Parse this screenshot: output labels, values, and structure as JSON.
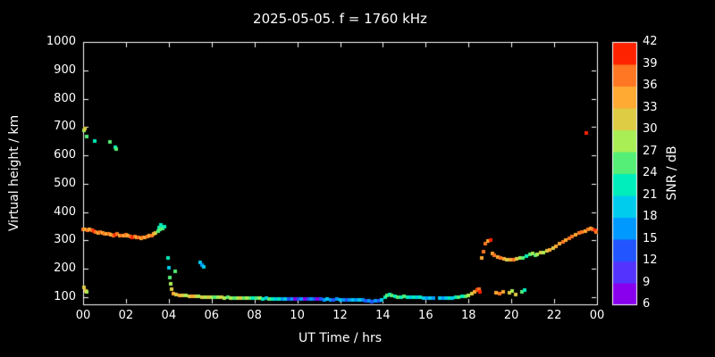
{
  "chart_data": {
    "type": "scatter",
    "title": "2025-05-05. f = 1760 kHz",
    "xlabel": "UT Time / hrs",
    "ylabel": "Virtual height / km",
    "xlim": [
      0,
      24
    ],
    "ylim": [
      75,
      1000
    ],
    "background": "#000000",
    "frame_color": "#ffffff",
    "text_color": "#ffffff",
    "grid": false,
    "x_ticks": {
      "values": [
        0,
        2,
        4,
        6,
        8,
        10,
        12,
        14,
        16,
        18,
        20,
        22,
        24
      ],
      "labels": [
        "00",
        "02",
        "04",
        "06",
        "08",
        "10",
        "12",
        "14",
        "16",
        "18",
        "20",
        "22",
        "00"
      ]
    },
    "y_ticks": {
      "values": [
        100,
        200,
        300,
        400,
        500,
        600,
        700,
        800,
        900,
        1000
      ],
      "labels": [
        "100",
        "200",
        "300",
        "400",
        "500",
        "600",
        "700",
        "800",
        "900",
        "1000"
      ]
    },
    "colorbar": {
      "label": "SNR / dB",
      "min": 6,
      "max": 42,
      "tick_values": [
        6,
        9,
        12,
        15,
        18,
        21,
        24,
        27,
        30,
        33,
        36,
        39,
        42
      ],
      "band_colors": [
        "#8800ee",
        "#5533ff",
        "#2255ff",
        "#0099ff",
        "#00ccee",
        "#00eebb",
        "#55ee77",
        "#aaee55",
        "#ddcc44",
        "#ffaa33",
        "#ff7722",
        "#ff2200"
      ]
    },
    "point_columns": [
      "ut_hours",
      "virtual_height_km",
      "snr_db"
    ],
    "points": [
      [
        0.0,
        340,
        36
      ],
      [
        0.1,
        338,
        33
      ],
      [
        0.2,
        336,
        36
      ],
      [
        0.3,
        338,
        33
      ],
      [
        0.4,
        336,
        36
      ],
      [
        0.5,
        334,
        39
      ],
      [
        0.6,
        331,
        36
      ],
      [
        0.7,
        328,
        33
      ],
      [
        0.8,
        330,
        36
      ],
      [
        0.9,
        326,
        33
      ],
      [
        1.0,
        324,
        36
      ],
      [
        1.1,
        322,
        33
      ],
      [
        1.2,
        324,
        36
      ],
      [
        1.3,
        320,
        33
      ],
      [
        1.4,
        318,
        36
      ],
      [
        1.5,
        320,
        39
      ],
      [
        1.6,
        322,
        36
      ],
      [
        1.7,
        318,
        33
      ],
      [
        1.8,
        316,
        36
      ],
      [
        1.9,
        318,
        33
      ],
      [
        2.0,
        320,
        36
      ],
      [
        2.1,
        316,
        33
      ],
      [
        2.2,
        314,
        36
      ],
      [
        2.3,
        312,
        39
      ],
      [
        2.4,
        314,
        36
      ],
      [
        2.5,
        310,
        33
      ],
      [
        2.6,
        312,
        36
      ],
      [
        2.7,
        308,
        33
      ],
      [
        2.8,
        310,
        36
      ],
      [
        2.9,
        312,
        33
      ],
      [
        3.0,
        314,
        36
      ],
      [
        3.1,
        316,
        33
      ],
      [
        3.2,
        318,
        36
      ],
      [
        3.3,
        322,
        33
      ],
      [
        3.4,
        326,
        30
      ],
      [
        3.5,
        332,
        24
      ],
      [
        3.55,
        345,
        21
      ],
      [
        3.6,
        338,
        24
      ],
      [
        3.65,
        355,
        21
      ],
      [
        3.7,
        344,
        24
      ],
      [
        3.8,
        350,
        21
      ],
      [
        0.05,
        690,
        27
      ],
      [
        0.1,
        695,
        30
      ],
      [
        0.15,
        665,
        24
      ],
      [
        0.55,
        650,
        21
      ],
      [
        1.25,
        648,
        24
      ],
      [
        1.5,
        628,
        21
      ],
      [
        1.55,
        622,
        24
      ],
      [
        0.05,
        135,
        30
      ],
      [
        0.12,
        122,
        33
      ],
      [
        0.18,
        118,
        27
      ],
      [
        3.95,
        238,
        21
      ],
      [
        4.0,
        205,
        18
      ],
      [
        4.05,
        168,
        24
      ],
      [
        4.1,
        148,
        27
      ],
      [
        4.15,
        128,
        30
      ],
      [
        4.3,
        192,
        24
      ],
      [
        5.45,
        222,
        18
      ],
      [
        5.55,
        215,
        15
      ],
      [
        5.65,
        208,
        18
      ],
      [
        4.2,
        112,
        33
      ],
      [
        4.35,
        110,
        30
      ],
      [
        4.5,
        108,
        33
      ],
      [
        4.65,
        106,
        30
      ],
      [
        4.8,
        105,
        27
      ],
      [
        4.95,
        104,
        30
      ],
      [
        5.1,
        103,
        33
      ],
      [
        5.25,
        102,
        30
      ],
      [
        5.4,
        102,
        27
      ],
      [
        5.55,
        101,
        30
      ],
      [
        5.7,
        101,
        27
      ],
      [
        5.85,
        100,
        30
      ],
      [
        6.0,
        100,
        27
      ],
      [
        6.15,
        99,
        24
      ],
      [
        6.3,
        100,
        27
      ],
      [
        6.45,
        99,
        30
      ],
      [
        6.6,
        98,
        27
      ],
      [
        6.75,
        99,
        24
      ],
      [
        6.9,
        98,
        27
      ],
      [
        7.05,
        98,
        24
      ],
      [
        7.2,
        97,
        27
      ],
      [
        7.35,
        98,
        30
      ],
      [
        7.5,
        97,
        24
      ],
      [
        7.65,
        97,
        27
      ],
      [
        7.8,
        96,
        24
      ],
      [
        7.95,
        97,
        21
      ],
      [
        8.1,
        96,
        24
      ],
      [
        8.25,
        96,
        27
      ],
      [
        8.4,
        95,
        21
      ],
      [
        8.55,
        96,
        18
      ],
      [
        8.7,
        95,
        24
      ],
      [
        8.85,
        95,
        21
      ],
      [
        9.0,
        95,
        18
      ],
      [
        9.15,
        94,
        21
      ],
      [
        9.3,
        95,
        15
      ],
      [
        9.45,
        94,
        18
      ],
      [
        9.6,
        94,
        12
      ],
      [
        9.75,
        95,
        15
      ],
      [
        9.9,
        94,
        8
      ],
      [
        10.05,
        94,
        12
      ],
      [
        10.2,
        93,
        15
      ],
      [
        10.35,
        94,
        7
      ],
      [
        10.5,
        93,
        12
      ],
      [
        10.65,
        93,
        15
      ],
      [
        10.8,
        94,
        12
      ],
      [
        10.95,
        93,
        7
      ],
      [
        11.1,
        93,
        12
      ],
      [
        11.25,
        92,
        15
      ],
      [
        11.4,
        93,
        18
      ],
      [
        11.55,
        92,
        15
      ],
      [
        11.7,
        92,
        12
      ],
      [
        11.85,
        93,
        15
      ],
      [
        12.0,
        92,
        18
      ],
      [
        12.15,
        92,
        15
      ],
      [
        12.3,
        91,
        12
      ],
      [
        12.45,
        92,
        15
      ],
      [
        12.6,
        91,
        18
      ],
      [
        12.75,
        91,
        15
      ],
      [
        12.9,
        90,
        18
      ],
      [
        13.05,
        90,
        15
      ],
      [
        13.2,
        89,
        12
      ],
      [
        13.35,
        88,
        15
      ],
      [
        13.5,
        86,
        12
      ],
      [
        13.65,
        87,
        15
      ],
      [
        13.8,
        88,
        12
      ],
      [
        13.95,
        90,
        18
      ],
      [
        14.1,
        100,
        21
      ],
      [
        14.2,
        108,
        24
      ],
      [
        14.3,
        110,
        21
      ],
      [
        14.4,
        105,
        24
      ],
      [
        14.55,
        102,
        21
      ],
      [
        14.7,
        100,
        24
      ],
      [
        14.85,
        101,
        21
      ],
      [
        15.0,
        102,
        24
      ],
      [
        15.15,
        101,
        21
      ],
      [
        15.3,
        100,
        18
      ],
      [
        15.45,
        100,
        21
      ],
      [
        15.6,
        99,
        18
      ],
      [
        15.75,
        99,
        21
      ],
      [
        15.9,
        98,
        18
      ],
      [
        16.05,
        97,
        15
      ],
      [
        16.2,
        97,
        18
      ],
      [
        16.35,
        96,
        15
      ],
      [
        16.65,
        96,
        18
      ],
      [
        16.8,
        96,
        15
      ],
      [
        16.95,
        97,
        18
      ],
      [
        17.1,
        97,
        21
      ],
      [
        17.25,
        98,
        18
      ],
      [
        17.4,
        99,
        21
      ],
      [
        17.55,
        100,
        24
      ],
      [
        17.7,
        102,
        21
      ],
      [
        17.85,
        104,
        24
      ],
      [
        18.0,
        107,
        27
      ],
      [
        18.15,
        112,
        30
      ],
      [
        18.3,
        118,
        33
      ],
      [
        18.4,
        124,
        36
      ],
      [
        18.45,
        130,
        39
      ],
      [
        18.5,
        127,
        36
      ],
      [
        18.55,
        120,
        39
      ],
      [
        18.6,
        238,
        33
      ],
      [
        18.7,
        262,
        36
      ],
      [
        18.8,
        288,
        36
      ],
      [
        18.9,
        298,
        33
      ],
      [
        19.05,
        300,
        39
      ],
      [
        19.1,
        255,
        33
      ],
      [
        19.2,
        248,
        36
      ],
      [
        19.35,
        243,
        33
      ],
      [
        19.5,
        239,
        36
      ],
      [
        19.65,
        236,
        33
      ],
      [
        19.8,
        233,
        30
      ],
      [
        19.95,
        231,
        33
      ],
      [
        20.1,
        233,
        36
      ],
      [
        20.25,
        236,
        30
      ],
      [
        20.4,
        240,
        27
      ],
      [
        20.55,
        238,
        24
      ],
      [
        20.7,
        244,
        21
      ],
      [
        20.85,
        250,
        24
      ],
      [
        21.0,
        254,
        27
      ],
      [
        19.3,
        117,
        33
      ],
      [
        19.45,
        112,
        36
      ],
      [
        19.6,
        120,
        33
      ],
      [
        19.9,
        115,
        30
      ],
      [
        20.05,
        122,
        27
      ],
      [
        20.2,
        110,
        30
      ],
      [
        20.5,
        118,
        24
      ],
      [
        20.6,
        125,
        21
      ],
      [
        21.1,
        248,
        24
      ],
      [
        21.2,
        252,
        27
      ],
      [
        21.35,
        256,
        30
      ],
      [
        21.5,
        259,
        27
      ],
      [
        21.65,
        263,
        30
      ],
      [
        21.8,
        268,
        33
      ],
      [
        21.95,
        272,
        30
      ],
      [
        22.1,
        280,
        33
      ],
      [
        22.25,
        288,
        33
      ],
      [
        22.4,
        295,
        36
      ],
      [
        22.55,
        302,
        33
      ],
      [
        22.7,
        308,
        36
      ],
      [
        22.85,
        315,
        36
      ],
      [
        23.0,
        320,
        33
      ],
      [
        23.15,
        326,
        36
      ],
      [
        23.3,
        330,
        36
      ],
      [
        23.45,
        334,
        33
      ],
      [
        23.6,
        338,
        36
      ],
      [
        23.7,
        342,
        33
      ],
      [
        23.8,
        340,
        36
      ],
      [
        23.9,
        336,
        39
      ],
      [
        23.95,
        331,
        36
      ],
      [
        23.5,
        680,
        39
      ]
    ]
  }
}
